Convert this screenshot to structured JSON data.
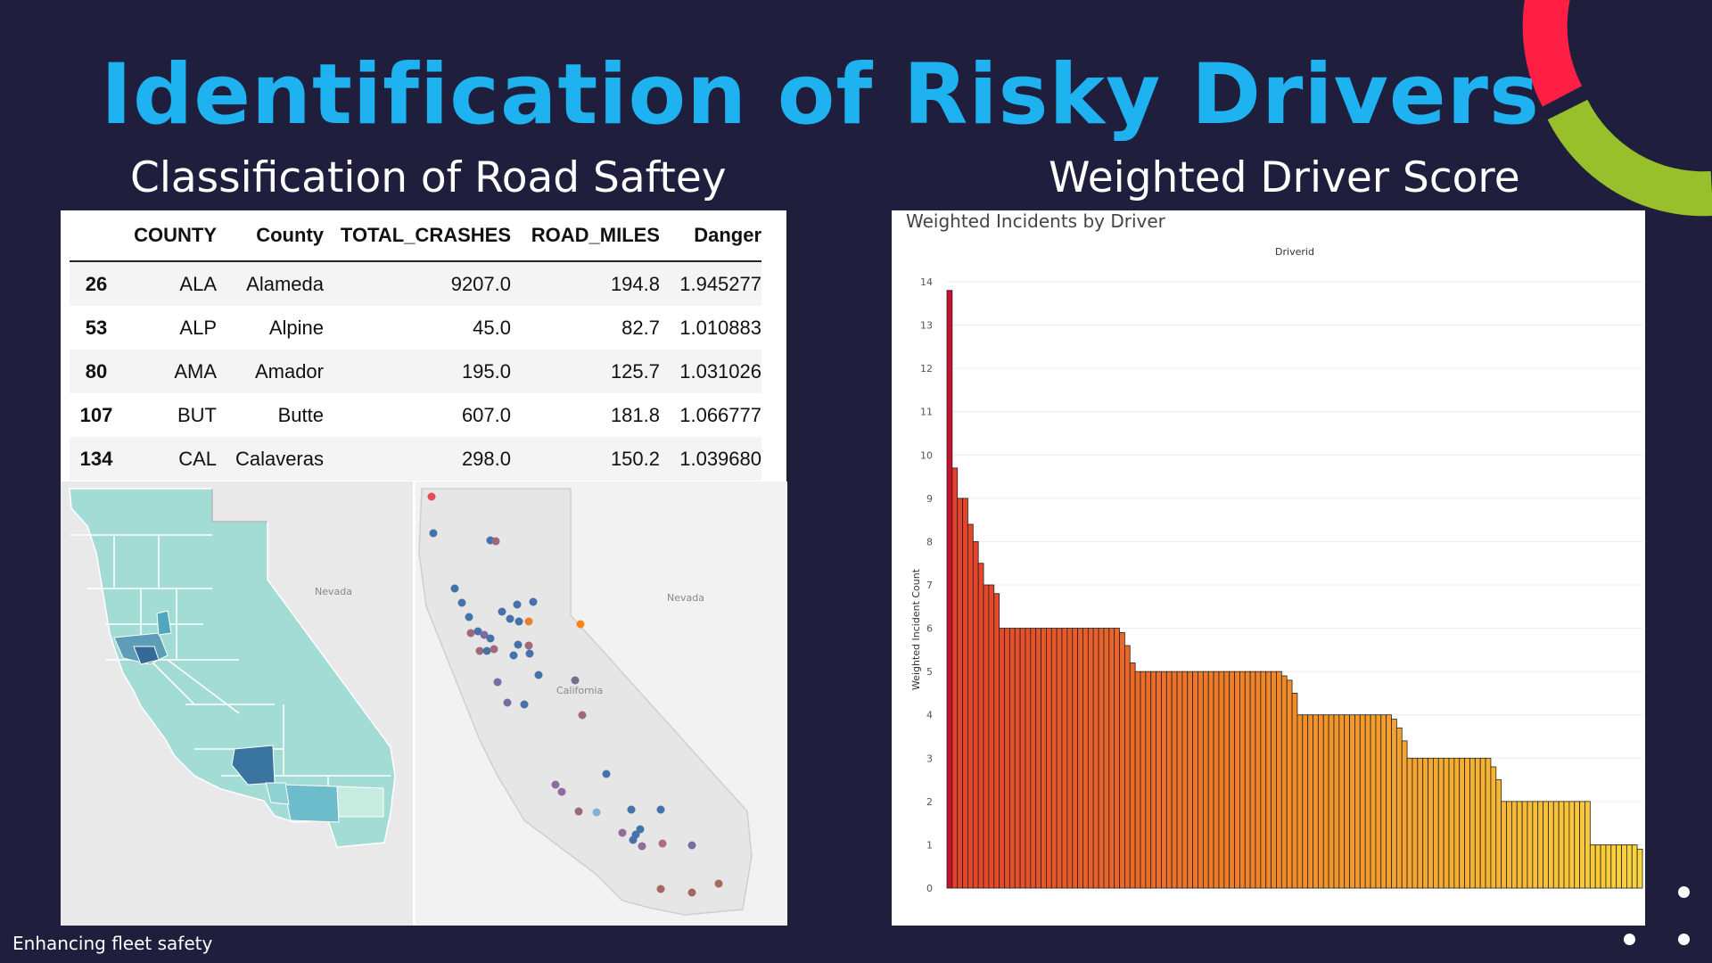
{
  "slide": {
    "title": "Identification of Risky Drivers",
    "left_title": "Classification of Road Saftey",
    "right_title": "Weighted Driver Score",
    "footer": "Enhancing fleet safety"
  },
  "table": {
    "headers": [
      "",
      "COUNTY",
      "County",
      "TOTAL_CRASHES",
      "ROAD_MILES",
      "Danger"
    ],
    "rows": [
      [
        "26",
        "ALA",
        "Alameda",
        "9207.0",
        "194.8",
        "1.945277"
      ],
      [
        "53",
        "ALP",
        "Alpine",
        "45.0",
        "82.7",
        "1.010883"
      ],
      [
        "80",
        "AMA",
        "Amador",
        "195.0",
        "125.7",
        "1.031026"
      ],
      [
        "107",
        "BUT",
        "Butte",
        "607.0",
        "181.8",
        "1.066777"
      ],
      [
        "134",
        "CAL",
        "Calaveras",
        "298.0",
        "150.2",
        "1.039680"
      ]
    ]
  },
  "maps": {
    "left_label": "Nevada",
    "right_label_state": "Nevada",
    "right_label_ca": "California"
  },
  "colors": {
    "background": "#1f1f3d",
    "title": "#1fb2f0",
    "deco_red": "#ff1f45",
    "deco_green": "#97c02b",
    "deco_blue": "#1fb2f0"
  },
  "chart_data": {
    "type": "bar",
    "title": "Weighted Incidents by Driver",
    "xlabel": "Driverid",
    "ylabel": "Weighted Incident Count",
    "ylim": [
      0,
      14
    ],
    "yticks": [
      0,
      1,
      2,
      3,
      4,
      5,
      6,
      7,
      8,
      9,
      10,
      11,
      12,
      13,
      14
    ],
    "sorted": "descending",
    "color_scale": "red-to-yellow",
    "values": [
      13.8,
      9.7,
      9.0,
      9.0,
      8.4,
      8.0,
      7.5,
      7.0,
      7.0,
      6.8,
      6.0,
      6.0,
      6.0,
      6.0,
      6.0,
      6.0,
      6.0,
      6.0,
      6.0,
      6.0,
      6.0,
      6.0,
      6.0,
      6.0,
      6.0,
      6.0,
      6.0,
      6.0,
      6.0,
      6.0,
      6.0,
      6.0,
      6.0,
      5.9,
      5.6,
      5.2,
      5.0,
      5.0,
      5.0,
      5.0,
      5.0,
      5.0,
      5.0,
      5.0,
      5.0,
      5.0,
      5.0,
      5.0,
      5.0,
      5.0,
      5.0,
      5.0,
      5.0,
      5.0,
      5.0,
      5.0,
      5.0,
      5.0,
      5.0,
      5.0,
      5.0,
      5.0,
      5.0,
      5.0,
      4.9,
      4.8,
      4.5,
      4.0,
      4.0,
      4.0,
      4.0,
      4.0,
      4.0,
      4.0,
      4.0,
      4.0,
      4.0,
      4.0,
      4.0,
      4.0,
      4.0,
      4.0,
      4.0,
      4.0,
      4.0,
      3.9,
      3.7,
      3.4,
      3.0,
      3.0,
      3.0,
      3.0,
      3.0,
      3.0,
      3.0,
      3.0,
      3.0,
      3.0,
      3.0,
      3.0,
      3.0,
      3.0,
      3.0,
      3.0,
      2.8,
      2.5,
      2.0,
      2.0,
      2.0,
      2.0,
      2.0,
      2.0,
      2.0,
      2.0,
      2.0,
      2.0,
      2.0,
      2.0,
      2.0,
      2.0,
      2.0,
      2.0,
      2.0,
      1.0,
      1.0,
      1.0,
      1.0,
      1.0,
      1.0,
      1.0,
      1.0,
      1.0,
      0.9
    ]
  }
}
